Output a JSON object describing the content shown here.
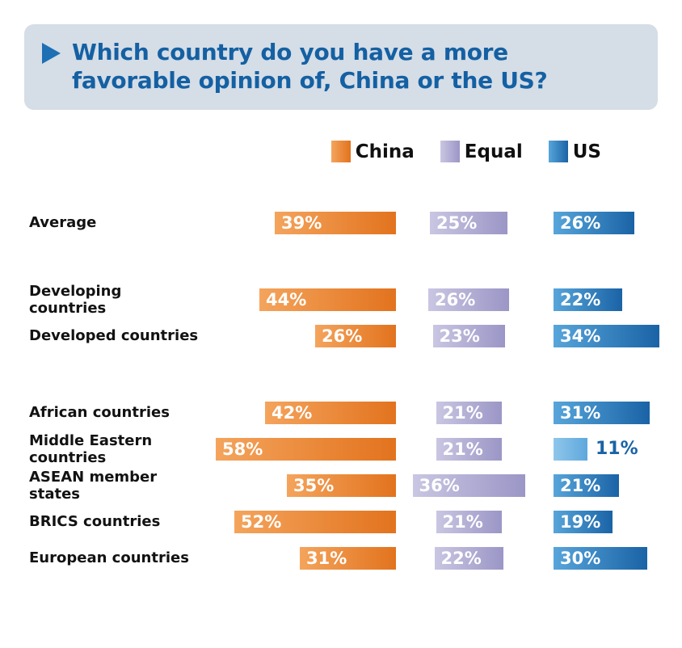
{
  "title": {
    "line1": "Which country do you have a more",
    "line2": "favorable opinion of, China or the US?"
  },
  "legend": [
    {
      "label": "China",
      "series": "china"
    },
    {
      "label": "Equal",
      "series": "equal"
    },
    {
      "label": "US",
      "series": "us"
    }
  ],
  "colors": {
    "title_bg": "#d5dde6",
    "title_text": "#1460a3",
    "triangle": "#1e6fb4",
    "china": [
      "#f4a45c",
      "#e2731e"
    ],
    "equal": [
      "#c9c6e2",
      "#9b96c6"
    ],
    "us": [
      "#57a5da",
      "#1a63a6"
    ],
    "us_small": [
      "#8fc6ea",
      "#5ea8dd"
    ],
    "us_outside_label": "#1a63a6"
  },
  "chart_data": {
    "type": "bar",
    "orientation": "horizontal",
    "unit": "%",
    "series_names": [
      "China",
      "Equal",
      "US"
    ],
    "groups": [
      {
        "rows": [
          {
            "label": "Average",
            "values": {
              "china": 39,
              "equal": 25,
              "us": 26
            }
          }
        ]
      },
      {
        "rows": [
          {
            "label": "Developing\ncountries",
            "values": {
              "china": 44,
              "equal": 26,
              "us": 22
            }
          },
          {
            "label": "Developed countries",
            "values": {
              "china": 26,
              "equal": 23,
              "us": 34
            }
          }
        ]
      },
      {
        "rows": [
          {
            "label": "African countries",
            "values": {
              "china": 42,
              "equal": 21,
              "us": 31
            }
          },
          {
            "label": "Middle Eastern\ncountries",
            "values": {
              "china": 58,
              "equal": 21,
              "us": 11
            }
          },
          {
            "label": "ASEAN member states",
            "values": {
              "china": 35,
              "equal": 36,
              "us": 21
            }
          },
          {
            "label": "BRICS countries",
            "values": {
              "china": 52,
              "equal": 21,
              "us": 19
            }
          },
          {
            "label": "European countries",
            "values": {
              "china": 31,
              "equal": 22,
              "us": 30
            }
          }
        ]
      }
    ]
  }
}
